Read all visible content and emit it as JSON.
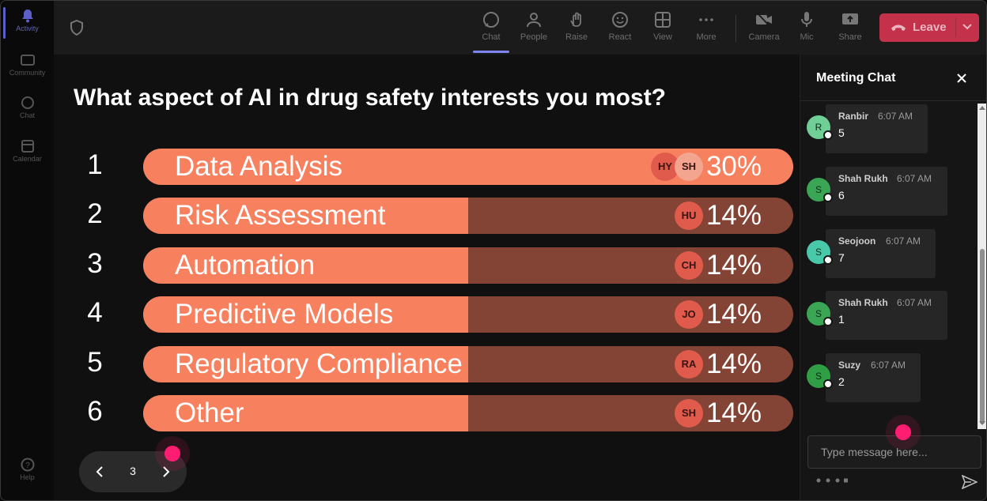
{
  "rail": {
    "items": [
      {
        "label": "Activity",
        "icon": "bell-icon"
      },
      {
        "label": "Community",
        "icon": "community-icon"
      },
      {
        "label": "Chat",
        "icon": "chat-icon"
      },
      {
        "label": "Calendar",
        "icon": "calendar-icon"
      },
      {
        "label": "Help",
        "icon": "help-icon"
      }
    ]
  },
  "toolbar": {
    "buttons": [
      {
        "label": "Chat",
        "icon": "chat-icon"
      },
      {
        "label": "People",
        "icon": "people-icon"
      },
      {
        "label": "Raise",
        "icon": "hand-icon"
      },
      {
        "label": "React",
        "icon": "smile-icon"
      },
      {
        "label": "View",
        "icon": "grid-icon"
      },
      {
        "label": "More",
        "icon": "more-icon"
      },
      {
        "label": "Camera",
        "icon": "camera-off-icon"
      },
      {
        "label": "Mic",
        "icon": "mic-icon"
      },
      {
        "label": "Share",
        "icon": "share-icon"
      }
    ],
    "leave_label": "Leave"
  },
  "poll": {
    "question": "What aspect of AI in drug safety interests you most?",
    "options": [
      {
        "num": "1",
        "label": "Data Analysis",
        "percent": "30%",
        "fraction": 0.3,
        "avatars": [
          "HY",
          "SH"
        ]
      },
      {
        "num": "2",
        "label": "Risk Assessment",
        "percent": "14%",
        "fraction": 0.14,
        "avatars": [
          "HU"
        ]
      },
      {
        "num": "3",
        "label": "Automation",
        "percent": "14%",
        "fraction": 0.14,
        "avatars": [
          "CH"
        ]
      },
      {
        "num": "4",
        "label": "Predictive Models",
        "percent": "14%",
        "fraction": 0.14,
        "avatars": [
          "JO"
        ]
      },
      {
        "num": "5",
        "label": "Regulatory Compliance",
        "percent": "14%",
        "fraction": 0.14,
        "avatars": [
          "RA"
        ]
      },
      {
        "num": "6",
        "label": "Other",
        "percent": "14%",
        "fraction": 0.14,
        "avatars": [
          "SH"
        ]
      }
    ],
    "page": "3"
  },
  "chat": {
    "title": "Meeting Chat",
    "messages": [
      {
        "initial": "R",
        "name": "Ranbir",
        "time": "6:07 AM",
        "text": "5",
        "color": "#6fcf97"
      },
      {
        "initial": "S",
        "name": "Shah Rukh",
        "time": "6:07 AM",
        "text": "6",
        "color": "#3aa655"
      },
      {
        "initial": "S",
        "name": "Seojoon",
        "time": "6:07 AM",
        "text": "7",
        "color": "#48c9a9"
      },
      {
        "initial": "S",
        "name": "Shah Rukh",
        "time": "6:07 AM",
        "text": "1",
        "color": "#3aa655"
      },
      {
        "initial": "S",
        "name": "Suzy",
        "time": "6:07 AM",
        "text": "2",
        "color": "#2f9e44"
      }
    ],
    "input_placeholder": "Type message here..."
  },
  "colors": {
    "bar_fill": "#f7805f",
    "bar_track": "#844435",
    "leave": "#c4314b",
    "accent": "#7f85f5"
  }
}
